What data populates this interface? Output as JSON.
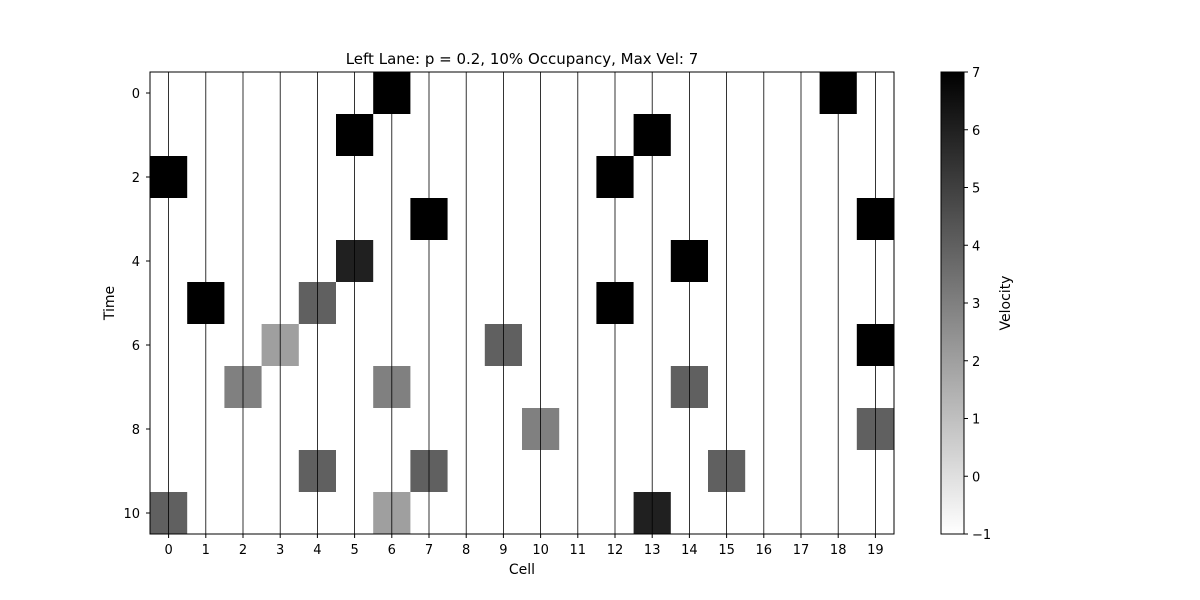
{
  "chart_data": {
    "type": "heatmap",
    "title": "Left Lane: p = 0.2, 10% Occupancy, Max Vel: 7",
    "xlabel": "Cell",
    "ylabel": "Time",
    "colorbar_label": "Velocity",
    "x_ticks": [
      0,
      1,
      2,
      3,
      4,
      5,
      6,
      7,
      8,
      9,
      10,
      11,
      12,
      13,
      14,
      15,
      16,
      17,
      18,
      19
    ],
    "y_ticks": [
      0,
      2,
      4,
      6,
      8,
      10
    ],
    "colorbar_ticks": [
      -1,
      0,
      1,
      2,
      3,
      4,
      5,
      6,
      7
    ],
    "value_range": [
      -1,
      7
    ],
    "colormap": "Greys",
    "gridlines": "vertical",
    "rows": [
      [
        -1,
        -1,
        -1,
        -1,
        -1,
        -1,
        7,
        -1,
        -1,
        -1,
        -1,
        -1,
        -1,
        -1,
        -1,
        -1,
        -1,
        -1,
        7,
        -1
      ],
      [
        -1,
        -1,
        -1,
        -1,
        -1,
        7,
        -1,
        -1,
        -1,
        -1,
        -1,
        -1,
        -1,
        7,
        -1,
        -1,
        -1,
        -1,
        -1,
        -1
      ],
      [
        7,
        -1,
        -1,
        -1,
        -1,
        -1,
        -1,
        -1,
        -1,
        -1,
        -1,
        -1,
        7,
        -1,
        -1,
        -1,
        -1,
        -1,
        -1,
        -1
      ],
      [
        -1,
        -1,
        -1,
        -1,
        -1,
        -1,
        -1,
        7,
        -1,
        -1,
        -1,
        -1,
        -1,
        -1,
        -1,
        -1,
        -1,
        -1,
        -1,
        7
      ],
      [
        -1,
        -1,
        -1,
        -1,
        -1,
        6,
        -1,
        -1,
        -1,
        -1,
        -1,
        -1,
        -1,
        -1,
        7,
        -1,
        -1,
        -1,
        -1,
        -1
      ],
      [
        -1,
        7,
        -1,
        -1,
        4,
        -1,
        -1,
        -1,
        -1,
        -1,
        -1,
        -1,
        7,
        -1,
        -1,
        -1,
        -1,
        -1,
        -1,
        -1
      ],
      [
        -1,
        -1,
        -1,
        2,
        -1,
        -1,
        -1,
        -1,
        -1,
        4,
        -1,
        -1,
        -1,
        -1,
        -1,
        -1,
        -1,
        -1,
        -1,
        7
      ],
      [
        -1,
        -1,
        3,
        -1,
        -1,
        -1,
        3,
        -1,
        -1,
        -1,
        -1,
        -1,
        -1,
        -1,
        4,
        -1,
        -1,
        -1,
        -1,
        -1
      ],
      [
        -1,
        -1,
        -1,
        -1,
        -1,
        -1,
        -1,
        -1,
        -1,
        -1,
        3,
        -1,
        -1,
        -1,
        -1,
        -1,
        -1,
        -1,
        -1,
        4
      ],
      [
        -1,
        -1,
        -1,
        -1,
        4,
        -1,
        -1,
        4,
        -1,
        -1,
        -1,
        -1,
        -1,
        -1,
        -1,
        4,
        -1,
        -1,
        -1,
        -1
      ],
      [
        4,
        -1,
        -1,
        -1,
        -1,
        -1,
        2,
        -1,
        -1,
        -1,
        -1,
        -1,
        -1,
        6,
        -1,
        -1,
        -1,
        -1,
        -1,
        -1
      ]
    ]
  }
}
